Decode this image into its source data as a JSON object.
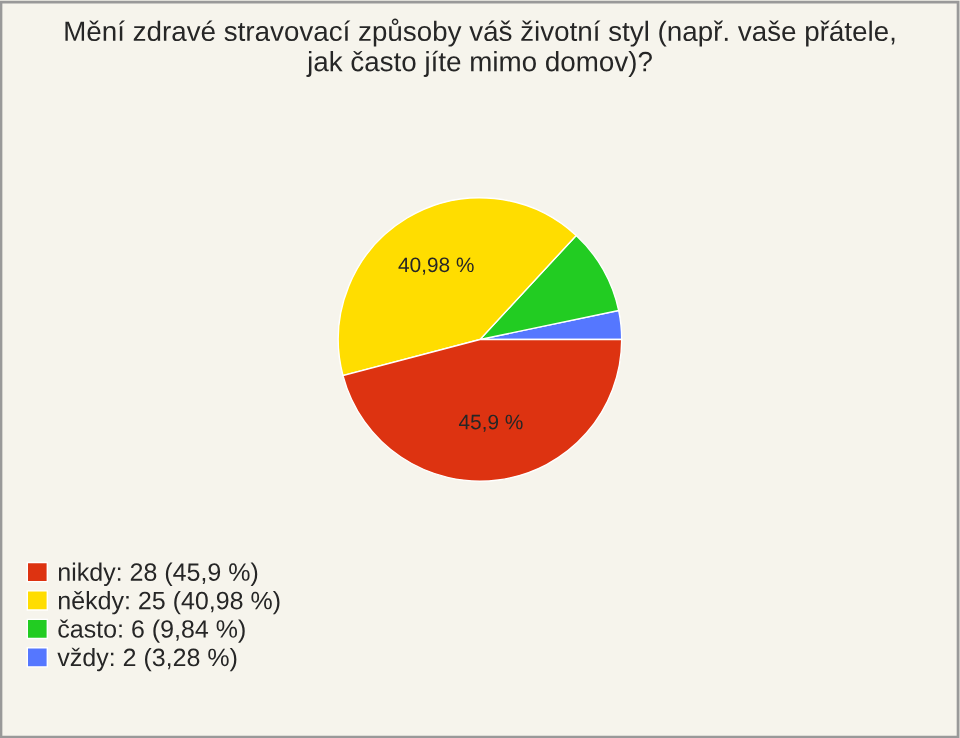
{
  "chart_data": {
    "type": "pie",
    "title": "Mění zdravé stravovací způsoby váš životní styl (např. vaše přátele,\njak často jíte mimo domov)?",
    "categories": [
      "nikdy: 28 (45,9 %)",
      "někdy: 25 (40,98 %)",
      "často: 6 (9,84 %)",
      "vždy: 2 (3,28 %)"
    ],
    "values": [
      45.9,
      40.98,
      9.84,
      3.28
    ],
    "colors": [
      "#dd3311",
      "#ffdd00",
      "#22cc22",
      "#5577ff"
    ],
    "value_labels": [
      "45,9 %",
      "40,98 %",
      null,
      null
    ],
    "legend": "bottom left"
  }
}
